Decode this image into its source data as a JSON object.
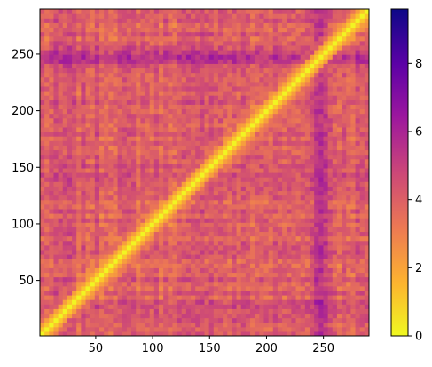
{
  "chart_data": {
    "type": "heatmap",
    "title": "",
    "xlabel": "",
    "ylabel": "",
    "xlim": [
      1,
      290
    ],
    "ylim": [
      1,
      290
    ],
    "x_ticks": [
      50,
      100,
      150,
      200,
      250
    ],
    "y_ticks": [
      50,
      100,
      150,
      200,
      250
    ],
    "colormap": "plasma_r",
    "colorbar": {
      "min": 0,
      "max": 9.6,
      "ticks": [
        0,
        2,
        4,
        6,
        8
      ]
    },
    "description_of_values": {
      "diagonal": 0,
      "high_bands_at": [
        245,
        250
      ],
      "typical_range": [
        2,
        7
      ]
    },
    "grid": false,
    "legend": "none"
  },
  "colors": {
    "plasma_stops": [
      "#f0f921",
      "#fdb42f",
      "#ed7953",
      "#cc4778",
      "#9c179e",
      "#5c01a6",
      "#0d0887"
    ]
  }
}
